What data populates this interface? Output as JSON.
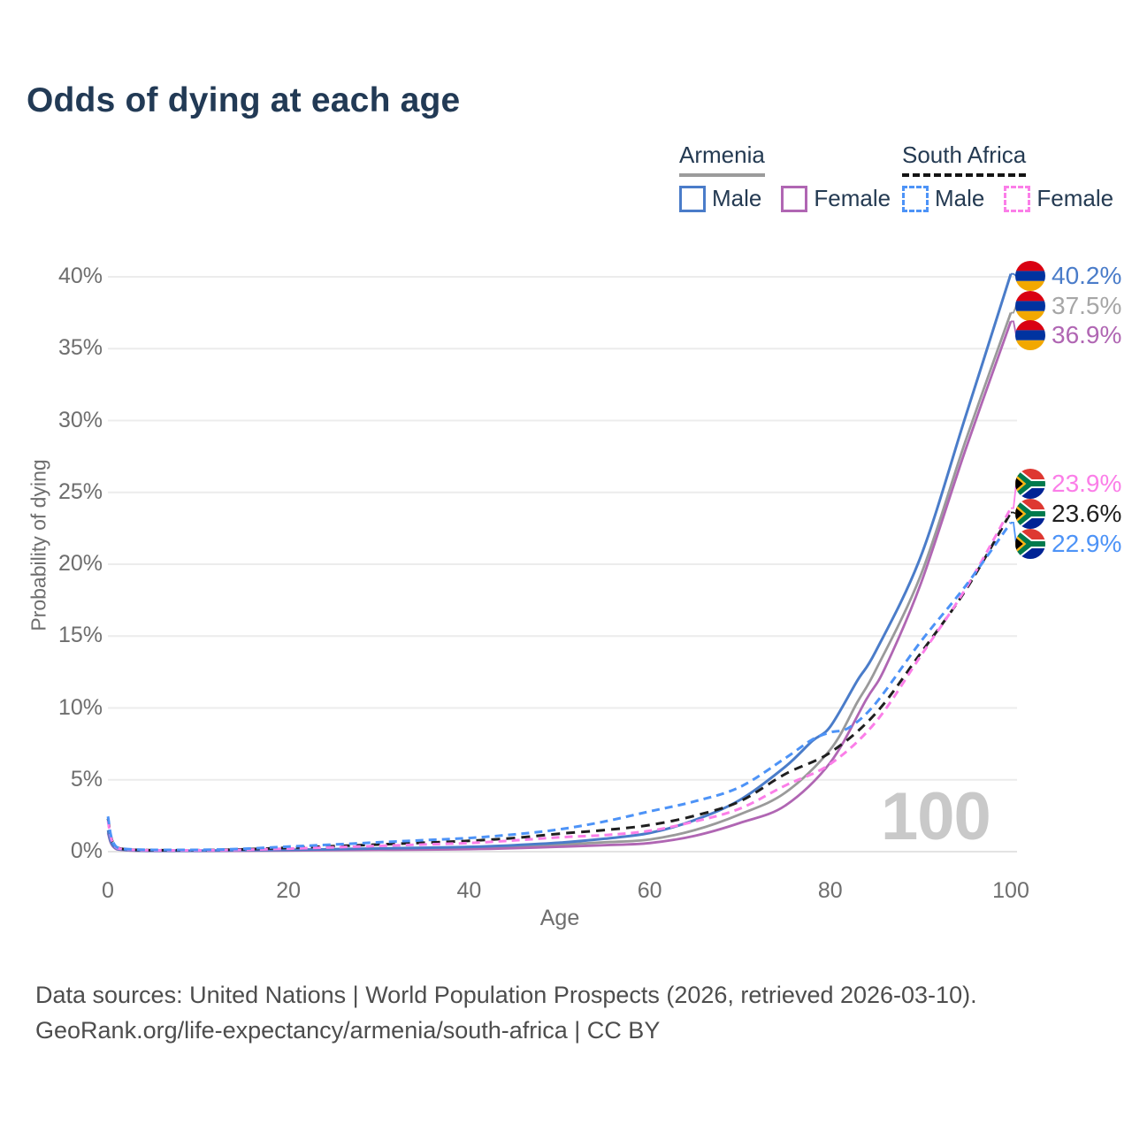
{
  "title": "Odds of dying at each age",
  "hover_age_label": "100",
  "legend": {
    "armenia": {
      "name": "Armenia",
      "male_label": "Male",
      "female_label": "Female"
    },
    "south_africa": {
      "name": "South Africa",
      "male_label": "Male",
      "female_label": "Female"
    }
  },
  "colors": {
    "armenia_male": "#4a7cc9",
    "armenia_both": "#9a9a9a",
    "armenia_female": "#b066b3",
    "sa_male": "#4d93f7",
    "sa_both": "#1f1f1f",
    "sa_female": "#fb7ee8",
    "title_text": "#223a55",
    "axis_text": "#6e6e6e",
    "grid": "#ececec",
    "watermark": "#c9c9c9",
    "footer_text": "#4d4d4d"
  },
  "axes": {
    "xlabel": "Age",
    "ylabel": "Probability of dying",
    "x_ticks": [
      0,
      20,
      40,
      60,
      80,
      100
    ],
    "y_ticks": [
      0,
      5,
      10,
      15,
      20,
      25,
      30,
      35,
      40
    ],
    "y_tick_suffix": "%"
  },
  "chart_data": {
    "type": "line",
    "title": "Odds of dying at each age",
    "xlabel": "Age",
    "ylabel": "Probability of dying",
    "xlim": [
      0,
      100
    ],
    "ylim": [
      0,
      40
    ],
    "grid": "horizontal",
    "legend_position": "top-right",
    "series": [
      {
        "name": "Armenia Both sexes",
        "country": "Armenia",
        "sex": "both",
        "color": "#9a9a9a",
        "dash": null,
        "width": 2.8,
        "points": [
          [
            0,
            1.4
          ],
          [
            1,
            0.18
          ],
          [
            5,
            0.06
          ],
          [
            10,
            0.06
          ],
          [
            15,
            0.08
          ],
          [
            20,
            0.1
          ],
          [
            25,
            0.13
          ],
          [
            30,
            0.16
          ],
          [
            35,
            0.2
          ],
          [
            40,
            0.25
          ],
          [
            45,
            0.34
          ],
          [
            50,
            0.48
          ],
          [
            55,
            0.65
          ],
          [
            60,
            0.85
          ],
          [
            65,
            1.5
          ],
          [
            70,
            2.6
          ],
          [
            75,
            4.1
          ],
          [
            80,
            7.1
          ],
          [
            83,
            10.4
          ],
          [
            85,
            12.6
          ],
          [
            90,
            19.2
          ],
          [
            95,
            28.6
          ],
          [
            100,
            37.5
          ]
        ]
      },
      {
        "name": "Armenia Female",
        "country": "Armenia",
        "sex": "female",
        "color": "#b066b3",
        "dash": null,
        "width": 2.8,
        "points": [
          [
            0,
            1.3
          ],
          [
            1,
            0.16
          ],
          [
            5,
            0.05
          ],
          [
            10,
            0.05
          ],
          [
            15,
            0.06
          ],
          [
            20,
            0.08
          ],
          [
            25,
            0.1
          ],
          [
            30,
            0.12
          ],
          [
            35,
            0.14
          ],
          [
            40,
            0.17
          ],
          [
            45,
            0.24
          ],
          [
            50,
            0.34
          ],
          [
            55,
            0.45
          ],
          [
            60,
            0.6
          ],
          [
            65,
            1.1
          ],
          [
            70,
            2.0
          ],
          [
            75,
            3.2
          ],
          [
            80,
            6.2
          ],
          [
            84,
            10.6
          ],
          [
            86,
            12.7
          ],
          [
            90,
            18.6
          ],
          [
            95,
            28.0
          ],
          [
            100,
            36.9
          ]
        ]
      },
      {
        "name": "Armenia Male",
        "country": "Armenia",
        "sex": "male",
        "color": "#4a7cc9",
        "dash": null,
        "width": 3,
        "points": [
          [
            0,
            1.5
          ],
          [
            1,
            0.2
          ],
          [
            5,
            0.07
          ],
          [
            10,
            0.07
          ],
          [
            15,
            0.1
          ],
          [
            20,
            0.13
          ],
          [
            25,
            0.17
          ],
          [
            30,
            0.22
          ],
          [
            35,
            0.27
          ],
          [
            40,
            0.33
          ],
          [
            45,
            0.45
          ],
          [
            50,
            0.62
          ],
          [
            55,
            0.9
          ],
          [
            60,
            1.3
          ],
          [
            65,
            2.2
          ],
          [
            70,
            3.6
          ],
          [
            75,
            5.9
          ],
          [
            78,
            7.7
          ],
          [
            80,
            8.7
          ],
          [
            83,
            11.9
          ],
          [
            85,
            13.9
          ],
          [
            90,
            20.5
          ],
          [
            95,
            30.3
          ],
          [
            100,
            40.2
          ]
        ]
      },
      {
        "name": "South Africa Both sexes",
        "country": "South Africa",
        "sex": "both",
        "color": "#1f1f1f",
        "dash": [
          10,
          7
        ],
        "width": 3,
        "points": [
          [
            0,
            2.3
          ],
          [
            1,
            0.27
          ],
          [
            5,
            0.1
          ],
          [
            10,
            0.1
          ],
          [
            15,
            0.16
          ],
          [
            20,
            0.27
          ],
          [
            25,
            0.38
          ],
          [
            30,
            0.5
          ],
          [
            35,
            0.62
          ],
          [
            40,
            0.75
          ],
          [
            45,
            0.95
          ],
          [
            50,
            1.25
          ],
          [
            55,
            1.5
          ],
          [
            60,
            1.85
          ],
          [
            65,
            2.5
          ],
          [
            70,
            3.5
          ],
          [
            75,
            5.4
          ],
          [
            80,
            6.9
          ],
          [
            85,
            9.6
          ],
          [
            90,
            13.8
          ],
          [
            95,
            18.2
          ],
          [
            100,
            23.6
          ]
        ]
      },
      {
        "name": "South Africa Female",
        "country": "South Africa",
        "sex": "female",
        "color": "#fb7ee8",
        "dash": [
          9,
          6
        ],
        "width": 3,
        "points": [
          [
            0,
            2.15
          ],
          [
            1,
            0.25
          ],
          [
            5,
            0.09
          ],
          [
            10,
            0.09
          ],
          [
            15,
            0.13
          ],
          [
            20,
            0.21
          ],
          [
            25,
            0.3
          ],
          [
            30,
            0.4
          ],
          [
            35,
            0.5
          ],
          [
            40,
            0.6
          ],
          [
            45,
            0.78
          ],
          [
            50,
            1.0
          ],
          [
            55,
            1.15
          ],
          [
            60,
            1.45
          ],
          [
            65,
            2.1
          ],
          [
            70,
            3.0
          ],
          [
            75,
            4.6
          ],
          [
            80,
            6.1
          ],
          [
            85,
            9.0
          ],
          [
            90,
            13.6
          ],
          [
            95,
            18.3
          ],
          [
            100,
            23.9
          ]
        ]
      },
      {
        "name": "South Africa Male",
        "country": "South Africa",
        "sex": "male",
        "color": "#4d93f7",
        "dash": [
          9,
          6
        ],
        "width": 3,
        "points": [
          [
            0,
            2.45
          ],
          [
            1,
            0.3
          ],
          [
            5,
            0.12
          ],
          [
            10,
            0.12
          ],
          [
            15,
            0.2
          ],
          [
            20,
            0.35
          ],
          [
            25,
            0.5
          ],
          [
            30,
            0.65
          ],
          [
            35,
            0.8
          ],
          [
            40,
            0.95
          ],
          [
            45,
            1.2
          ],
          [
            50,
            1.55
          ],
          [
            55,
            2.1
          ],
          [
            60,
            2.8
          ],
          [
            65,
            3.5
          ],
          [
            70,
            4.5
          ],
          [
            75,
            6.5
          ],
          [
            78,
            7.8
          ],
          [
            80,
            8.3
          ],
          [
            82,
            8.6
          ],
          [
            85,
            10.3
          ],
          [
            90,
            14.6
          ],
          [
            95,
            18.5
          ],
          [
            100,
            22.9
          ]
        ]
      }
    ],
    "end_labels": [
      {
        "label": "40.2%",
        "value": 40.2,
        "flag": "armenia",
        "group": "armenia",
        "row": 0,
        "color": "#4a7cc9"
      },
      {
        "label": "37.5%",
        "value": 37.5,
        "flag": "armenia",
        "group": "armenia",
        "row": 1,
        "color": "#a6a6a6"
      },
      {
        "label": "36.9%",
        "value": 36.9,
        "flag": "armenia",
        "group": "armenia",
        "row": 2,
        "color": "#b066b3"
      },
      {
        "label": "23.9%",
        "value": 23.9,
        "flag": "south-africa",
        "group": "south_africa",
        "row": 0,
        "color": "#fb7ee8"
      },
      {
        "label": "23.6%",
        "value": 23.6,
        "flag": "south-africa",
        "group": "south_africa",
        "row": 1,
        "color": "#1f1f1f"
      },
      {
        "label": "22.9%",
        "value": 22.9,
        "flag": "south-africa",
        "group": "south_africa",
        "row": 2,
        "color": "#4d93f7"
      }
    ]
  },
  "footer": {
    "line1": "Data sources: United Nations | World Population Prospects (2026, retrieved 2026-03-10).",
    "line2": "GeoRank.org/life-expectancy/armenia/south-africa | CC BY"
  }
}
